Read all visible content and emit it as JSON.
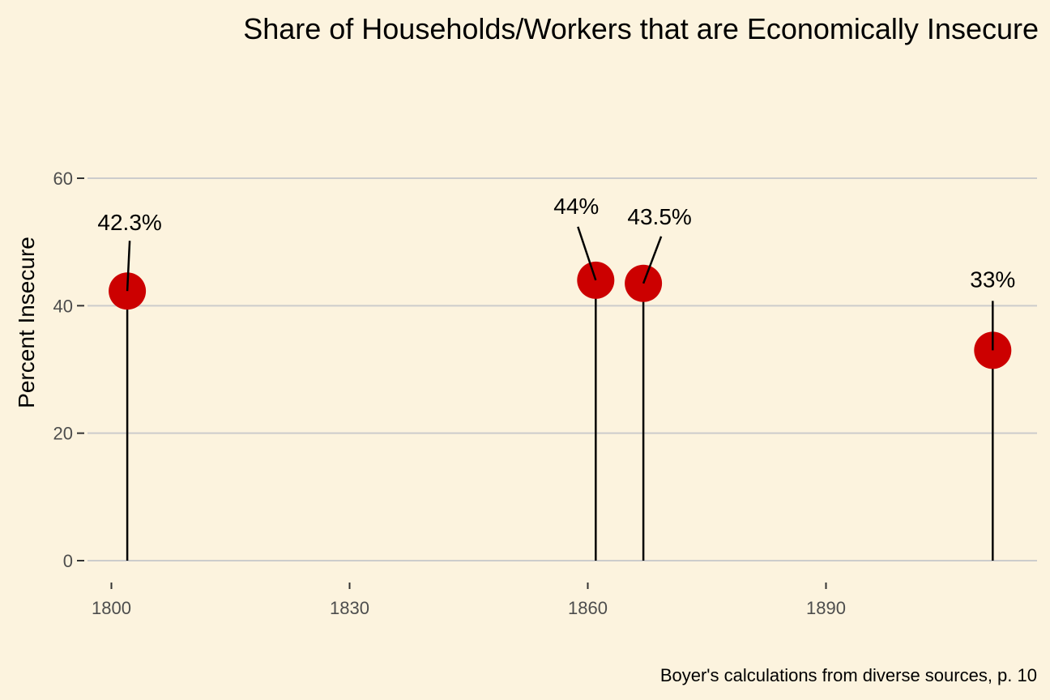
{
  "chart_data": {
    "type": "scatter",
    "title": "Share of Households/Workers that are Economically Insecure",
    "xlabel": "",
    "ylabel": "Percent Insecure",
    "caption": "Boyer's calculations from diverse sources, p. 10",
    "xlim": [
      1796,
      1918
    ],
    "ylim": [
      0,
      60
    ],
    "xticks": [
      1800,
      1830,
      1860,
      1890
    ],
    "yticks": [
      0,
      20,
      40,
      60
    ],
    "grid": "horizontal",
    "point_color": "#cc0000",
    "points": [
      {
        "x": 1802,
        "y": 42.3,
        "label": "42.3%"
      },
      {
        "x": 1861,
        "y": 44,
        "label": "44%"
      },
      {
        "x": 1867,
        "y": 43.5,
        "label": "43.5%"
      },
      {
        "x": 1911,
        "y": 33,
        "label": "33%"
      }
    ]
  }
}
